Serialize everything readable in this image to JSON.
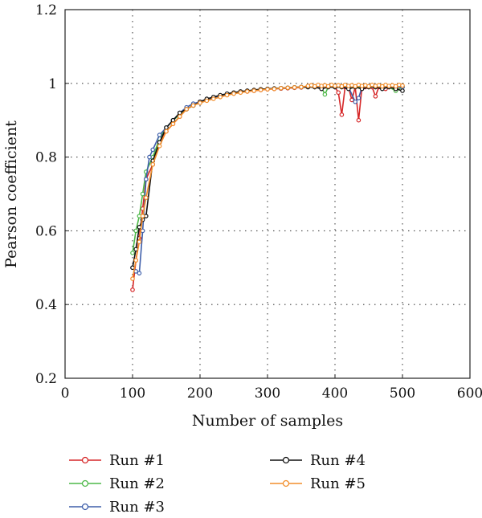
{
  "chart_data": {
    "type": "line",
    "title": "",
    "xlabel": "Number of samples",
    "ylabel": "Pearson coefficient",
    "xlim": [
      0,
      600
    ],
    "ylim": [
      0.2,
      1.2
    ],
    "x_ticks": [
      0,
      100,
      200,
      300,
      400,
      500,
      600
    ],
    "y_ticks": [
      0.2,
      0.4,
      0.6,
      0.8,
      1,
      1.2
    ],
    "x_tick_labels": [
      "0",
      "100",
      "200",
      "300",
      "400",
      "500",
      "600"
    ],
    "y_tick_labels": [
      "0.2",
      "0.4",
      "0.6",
      "0.8",
      "1",
      "1.2"
    ],
    "grid": "dotted, inner gridlines",
    "legend_position": "bottom",
    "series": [
      {
        "name": "Run #1",
        "color": "#d62728",
        "x": [
          100,
          105,
          110,
          115,
          120,
          130,
          140,
          150,
          160,
          170,
          180,
          190,
          200,
          210,
          220,
          230,
          240,
          250,
          260,
          270,
          280,
          290,
          300,
          310,
          320,
          330,
          340,
          350,
          360,
          370,
          380,
          390,
          400,
          405,
          410,
          415,
          420,
          425,
          430,
          435,
          440,
          445,
          450,
          455,
          460,
          465,
          470,
          475,
          480,
          485,
          490,
          495,
          500
        ],
        "y": [
          0.44,
          0.52,
          0.58,
          0.66,
          0.74,
          0.78,
          0.84,
          0.87,
          0.89,
          0.91,
          0.93,
          0.94,
          0.95,
          0.955,
          0.96,
          0.965,
          0.97,
          0.973,
          0.976,
          0.978,
          0.98,
          0.982,
          0.984,
          0.985,
          0.986,
          0.987,
          0.988,
          0.989,
          0.99,
          0.99,
          0.99,
          0.99,
          0.99,
          0.975,
          0.915,
          0.99,
          0.99,
          0.955,
          0.99,
          0.9,
          0.99,
          0.99,
          0.99,
          0.99,
          0.965,
          0.99,
          0.99,
          0.985,
          0.99,
          0.99,
          0.99,
          0.99,
          0.99
        ]
      },
      {
        "name": "Run #2",
        "color": "#4db848",
        "x": [
          100,
          105,
          110,
          115,
          120,
          130,
          140,
          150,
          160,
          170,
          180,
          190,
          200,
          210,
          220,
          230,
          240,
          250,
          260,
          270,
          280,
          290,
          300,
          310,
          320,
          330,
          340,
          350,
          360,
          370,
          380,
          385,
          390,
          400,
          410,
          420,
          430,
          440,
          450,
          460,
          470,
          480,
          490,
          500
        ],
        "y": [
          0.54,
          0.6,
          0.64,
          0.7,
          0.76,
          0.8,
          0.85,
          0.88,
          0.9,
          0.915,
          0.93,
          0.94,
          0.948,
          0.954,
          0.96,
          0.965,
          0.97,
          0.973,
          0.976,
          0.979,
          0.981,
          0.983,
          0.985,
          0.986,
          0.987,
          0.988,
          0.989,
          0.99,
          0.99,
          0.99,
          0.99,
          0.97,
          0.99,
          0.99,
          0.99,
          0.99,
          0.99,
          0.99,
          0.99,
          0.99,
          0.99,
          0.99,
          0.98,
          0.99
        ]
      },
      {
        "name": "Run #3",
        "color": "#3f5faa",
        "x": [
          100,
          105,
          110,
          115,
          120,
          125,
          130,
          140,
          150,
          160,
          170,
          180,
          190,
          200,
          210,
          220,
          230,
          240,
          250,
          260,
          270,
          280,
          290,
          300,
          310,
          320,
          330,
          340,
          350,
          360,
          370,
          380,
          390,
          400,
          410,
          420,
          430,
          435,
          440,
          450,
          460,
          470,
          480,
          490,
          500
        ],
        "y": [
          0.5,
          0.49,
          0.485,
          0.6,
          0.74,
          0.8,
          0.82,
          0.86,
          0.88,
          0.9,
          0.92,
          0.935,
          0.945,
          0.95,
          0.955,
          0.96,
          0.965,
          0.97,
          0.973,
          0.976,
          0.979,
          0.981,
          0.983,
          0.985,
          0.986,
          0.987,
          0.988,
          0.989,
          0.99,
          0.99,
          0.99,
          0.99,
          0.99,
          0.99,
          0.99,
          0.99,
          0.95,
          0.96,
          0.99,
          0.99,
          0.99,
          0.99,
          0.99,
          0.99,
          0.99
        ]
      },
      {
        "name": "Run #4",
        "color": "#111111",
        "x": [
          100,
          105,
          110,
          115,
          120,
          130,
          140,
          150,
          160,
          170,
          180,
          190,
          200,
          210,
          220,
          230,
          240,
          250,
          260,
          270,
          280,
          290,
          300,
          310,
          320,
          330,
          340,
          350,
          360,
          370,
          380,
          390,
          400,
          410,
          420,
          430,
          440,
          450,
          460,
          470,
          480,
          490,
          500
        ],
        "y": [
          0.5,
          0.55,
          0.61,
          0.63,
          0.64,
          0.79,
          0.84,
          0.88,
          0.9,
          0.92,
          0.93,
          0.94,
          0.95,
          0.958,
          0.963,
          0.968,
          0.972,
          0.975,
          0.978,
          0.98,
          0.982,
          0.984,
          0.985,
          0.986,
          0.987,
          0.988,
          0.989,
          0.99,
          0.99,
          0.99,
          0.985,
          0.99,
          0.99,
          0.99,
          0.985,
          0.99,
          0.985,
          0.99,
          0.99,
          0.985,
          0.99,
          0.985,
          0.98
        ]
      },
      {
        "name": "Run #5",
        "color": "#f28e2b",
        "x": [
          100,
          105,
          110,
          115,
          120,
          130,
          140,
          150,
          160,
          170,
          180,
          190,
          200,
          210,
          220,
          230,
          240,
          250,
          260,
          270,
          280,
          290,
          300,
          310,
          320,
          330,
          340,
          350,
          360,
          365,
          370,
          375,
          380,
          385,
          390,
          395,
          400,
          405,
          410,
          415,
          420,
          425,
          430,
          435,
          440,
          445,
          450,
          455,
          460,
          465,
          470,
          475,
          480,
          485,
          490,
          495,
          500
        ],
        "y": [
          0.47,
          0.52,
          0.57,
          0.64,
          0.69,
          0.78,
          0.83,
          0.87,
          0.89,
          0.91,
          0.93,
          0.94,
          0.947,
          0.953,
          0.958,
          0.963,
          0.968,
          0.972,
          0.975,
          0.978,
          0.98,
          0.982,
          0.984,
          0.985,
          0.987,
          0.988,
          0.989,
          0.99,
          0.993,
          0.995,
          0.992,
          0.996,
          0.993,
          0.995,
          0.992,
          0.996,
          0.993,
          0.995,
          0.992,
          0.996,
          0.993,
          0.995,
          0.992,
          0.996,
          0.993,
          0.995,
          0.992,
          0.996,
          0.993,
          0.995,
          0.992,
          0.996,
          0.993,
          0.995,
          0.992,
          0.996,
          0.994
        ]
      }
    ]
  }
}
